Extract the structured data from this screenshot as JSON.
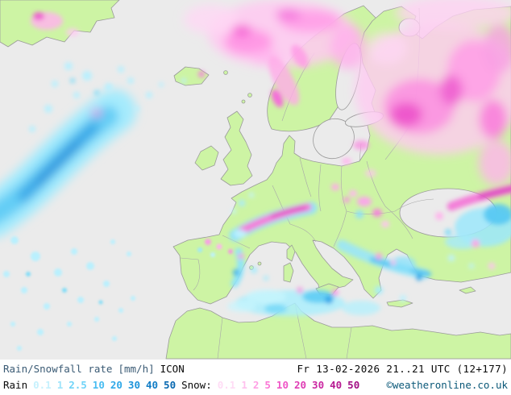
{
  "legend": {
    "title": "Rain/Snowfall rate",
    "units": "[mm/h]",
    "model": "ICON",
    "datetime": "Fr 13-02-2026 21..21 UTC (12+177)",
    "rain_label": "Rain",
    "rain_values": [
      {
        "label": "0.1",
        "color": "#c6f1fd"
      },
      {
        "label": "1",
        "color": "#9fe4fb"
      },
      {
        "label": "2.5",
        "color": "#6fd3f8"
      },
      {
        "label": "10",
        "color": "#49bdf2"
      },
      {
        "label": "20",
        "color": "#2fa8e8"
      },
      {
        "label": "30",
        "color": "#1d93da"
      },
      {
        "label": "40",
        "color": "#117dc6"
      },
      {
        "label": "50",
        "color": "#0868b0"
      }
    ],
    "snow_label": "Snow:",
    "snow_values": [
      {
        "label": "0.1",
        "color": "#ffdcf5"
      },
      {
        "label": "1",
        "color": "#ffc2ee"
      },
      {
        "label": "2",
        "color": "#ff9fe4"
      },
      {
        "label": "5",
        "color": "#fb77d6"
      },
      {
        "label": "10",
        "color": "#ef55c6"
      },
      {
        "label": "20",
        "color": "#df3cb4"
      },
      {
        "label": "30",
        "color": "#cb28a2"
      },
      {
        "label": "40",
        "color": "#b61a92"
      },
      {
        "label": "50",
        "color": "#a20e84"
      }
    ],
    "copyright": "©weatheronline.co.uk"
  },
  "map": {
    "colors": {
      "sea": "#ebebeb",
      "land": "#cdf4a4",
      "coastline": "#9a9a9a",
      "rain_light": "#a6ebfd",
      "rain_mid": "#64cdf5",
      "rain_heavy": "#2f9fe4",
      "snow_light": "#ffc9f1",
      "snow_mid": "#ff93e4",
      "snow_heavy": "#ee58cc"
    }
  }
}
